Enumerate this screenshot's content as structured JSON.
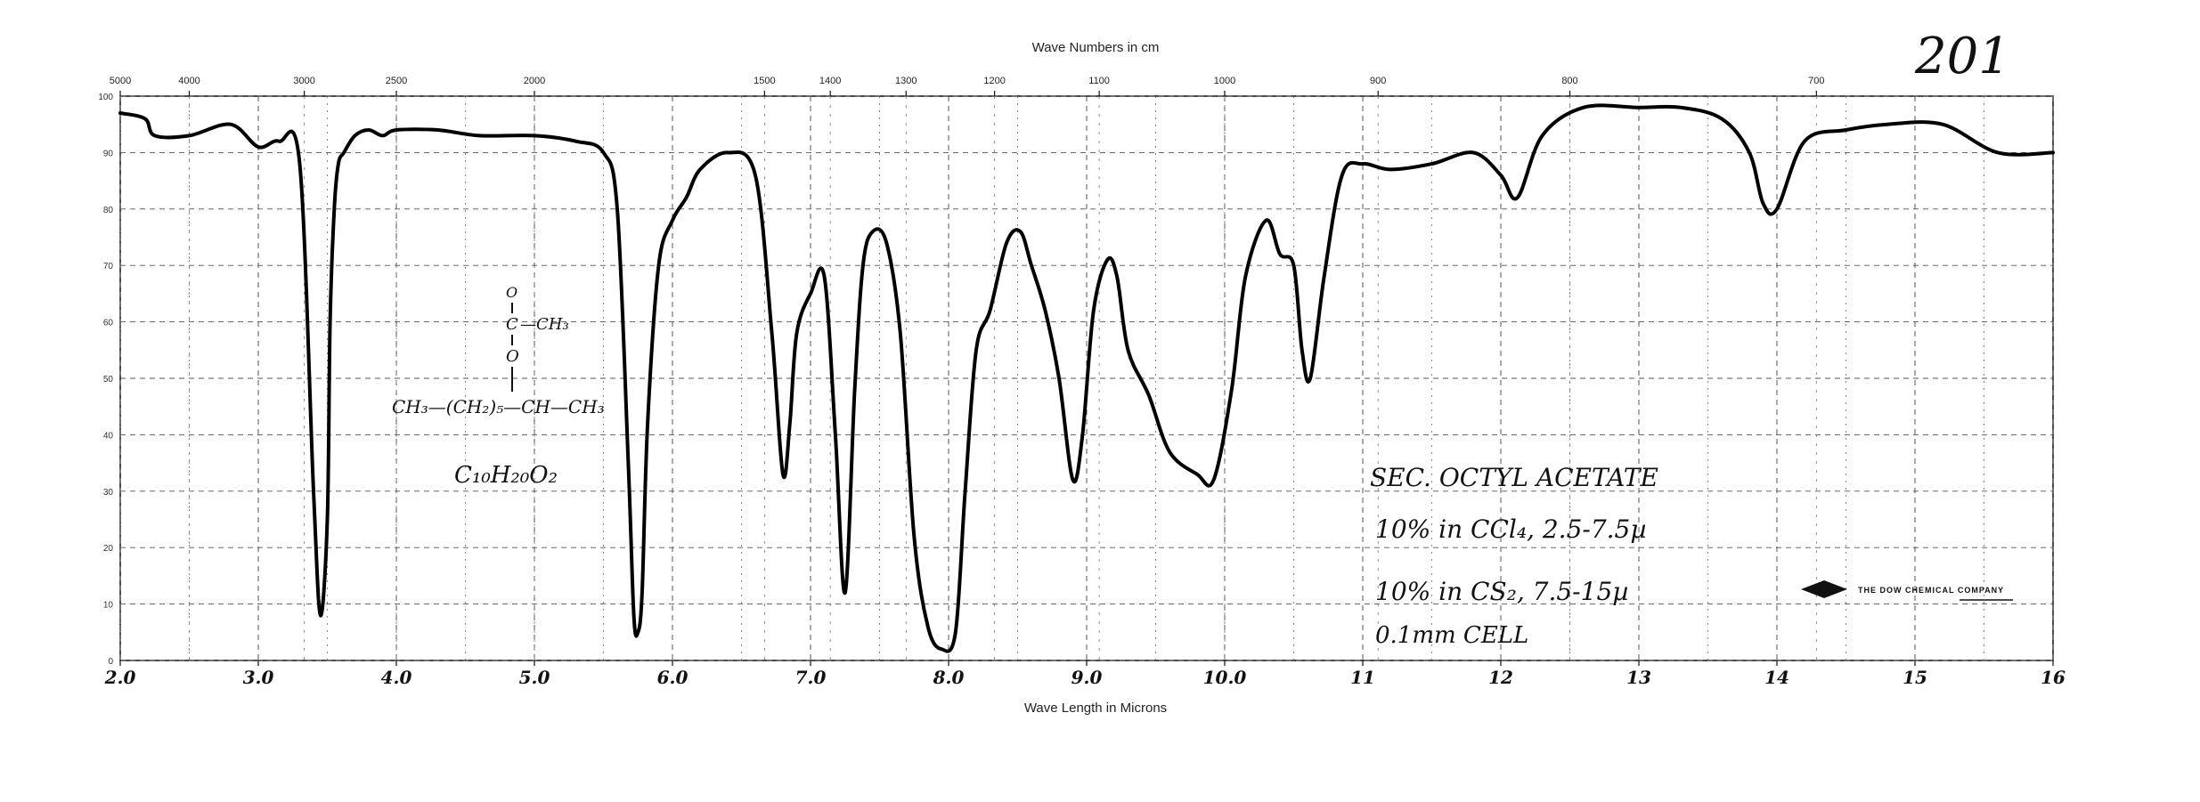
{
  "page_number": "201",
  "chart_data": {
    "type": "line",
    "x_top_label": "Wave Numbers in cm",
    "xlabel": "Wave Length in Microns",
    "ylabel": "",
    "xlim": [
      2.0,
      16.0
    ],
    "ylim": [
      0,
      100
    ],
    "grid": true,
    "top_ticks": [
      {
        "label": "5000",
        "wl": 2.0
      },
      {
        "label": "4000",
        "wl": 2.5
      },
      {
        "label": "3000",
        "wl": 3.333
      },
      {
        "label": "2500",
        "wl": 4.0
      },
      {
        "label": "2000",
        "wl": 5.0
      },
      {
        "label": "1500",
        "wl": 6.667
      },
      {
        "label": "1400",
        "wl": 7.143
      },
      {
        "label": "1300",
        "wl": 7.692
      },
      {
        "label": "1200",
        "wl": 8.333
      },
      {
        "label": "1100",
        "wl": 9.091
      },
      {
        "label": "1000",
        "wl": 10.0
      },
      {
        "label": "900",
        "wl": 11.111
      },
      {
        "label": "800",
        "wl": 12.5
      },
      {
        "label": "700",
        "wl": 14.286
      }
    ],
    "bottom_ticks": [
      {
        "label": "2.0",
        "wl": 2.0
      },
      {
        "label": "3.0",
        "wl": 3.0
      },
      {
        "label": "4.0",
        "wl": 4.0
      },
      {
        "label": "5.0",
        "wl": 5.0
      },
      {
        "label": "6.0",
        "wl": 6.0
      },
      {
        "label": "7.0",
        "wl": 7.0
      },
      {
        "label": "8.0",
        "wl": 8.0
      },
      {
        "label": "9.0",
        "wl": 9.0
      },
      {
        "label": "10.0",
        "wl": 10.0
      },
      {
        "label": "11",
        "wl": 11.0
      },
      {
        "label": "12",
        "wl": 12.0
      },
      {
        "label": "13",
        "wl": 13.0
      },
      {
        "label": "14",
        "wl": 14.0
      },
      {
        "label": "15",
        "wl": 15.0
      },
      {
        "label": "16",
        "wl": 16.0
      }
    ],
    "y_ticks": [
      {
        "label": "100",
        "v": 100
      },
      {
        "label": "90",
        "v": 90
      },
      {
        "label": "80",
        "v": 80
      },
      {
        "label": "70",
        "v": 70
      },
      {
        "label": "60",
        "v": 60
      },
      {
        "label": "50",
        "v": 50
      },
      {
        "label": "40",
        "v": 40
      },
      {
        "label": "30",
        "v": 30
      },
      {
        "label": "20",
        "v": 20
      },
      {
        "label": "10",
        "v": 10
      },
      {
        "label": "0",
        "v": 0
      }
    ],
    "series": [
      {
        "name": "",
        "x": [
          2.0,
          2.18,
          2.25,
          2.5,
          2.8,
          3.0,
          3.15,
          3.3,
          3.4,
          3.45,
          3.5,
          3.52,
          3.55,
          3.58,
          3.62,
          3.7,
          3.8,
          3.9,
          4.0,
          4.3,
          4.6,
          5.0,
          5.3,
          5.5,
          5.6,
          5.68,
          5.72,
          5.75,
          5.78,
          5.82,
          5.9,
          6.0,
          6.1,
          6.2,
          6.4,
          6.6,
          6.72,
          6.8,
          6.85,
          6.9,
          7.0,
          7.1,
          7.18,
          7.25,
          7.32,
          7.38,
          7.45,
          7.55,
          7.65,
          7.75,
          7.85,
          7.95,
          8.05,
          8.12,
          8.2,
          8.3,
          8.42,
          8.52,
          8.6,
          8.7,
          8.8,
          8.9,
          8.97,
          9.05,
          9.15,
          9.22,
          9.3,
          9.45,
          9.6,
          9.8,
          9.92,
          10.05,
          10.15,
          10.3,
          10.4,
          10.5,
          10.56,
          10.62,
          10.72,
          10.85,
          11.0,
          11.2,
          11.5,
          11.8,
          12.0,
          12.12,
          12.3,
          12.6,
          13.0,
          13.3,
          13.6,
          13.8,
          13.9,
          14.0,
          14.2,
          14.5,
          14.8,
          15.2,
          15.6,
          16.0
        ],
        "y": [
          97,
          96,
          93,
          93,
          95,
          91,
          92,
          88,
          30,
          8,
          25,
          60,
          80,
          88,
          90,
          93,
          94,
          93,
          94,
          94,
          93,
          93,
          92,
          90,
          80,
          35,
          8,
          5,
          12,
          42,
          70,
          78,
          82,
          87,
          90,
          86,
          58,
          33,
          42,
          58,
          65,
          68,
          40,
          12,
          48,
          70,
          76,
          74,
          58,
          22,
          6,
          2,
          5,
          30,
          55,
          62,
          74,
          76,
          70,
          62,
          50,
          32,
          40,
          62,
          71,
          68,
          55,
          47,
          37,
          33,
          32,
          48,
          68,
          78,
          72,
          70,
          55,
          50,
          68,
          86,
          88,
          87,
          88,
          90,
          86,
          82,
          93,
          98,
          98,
          98,
          96,
          90,
          81,
          80,
          92,
          94,
          95,
          95,
          90,
          90
        ]
      }
    ]
  },
  "annotations": {
    "compound_name": "SEC. OCTYL ACETATE",
    "cond_1": "10% in CCl₄, 2.5-7.5µ",
    "cond_2": "10% in CS₂, 7.5-15µ",
    "cond_3": "0.1mm CELL",
    "formula": "C₁₀H₂₀O₂",
    "struct_o": "O",
    "struct_c": "C",
    "struct_ch3_top": "—CH₃",
    "struct_o2": "O",
    "struct_chain": "CH₃—(CH₂)₅—CH—CH₃",
    "company": "THE DOW CHEMICAL COMPANY"
  }
}
